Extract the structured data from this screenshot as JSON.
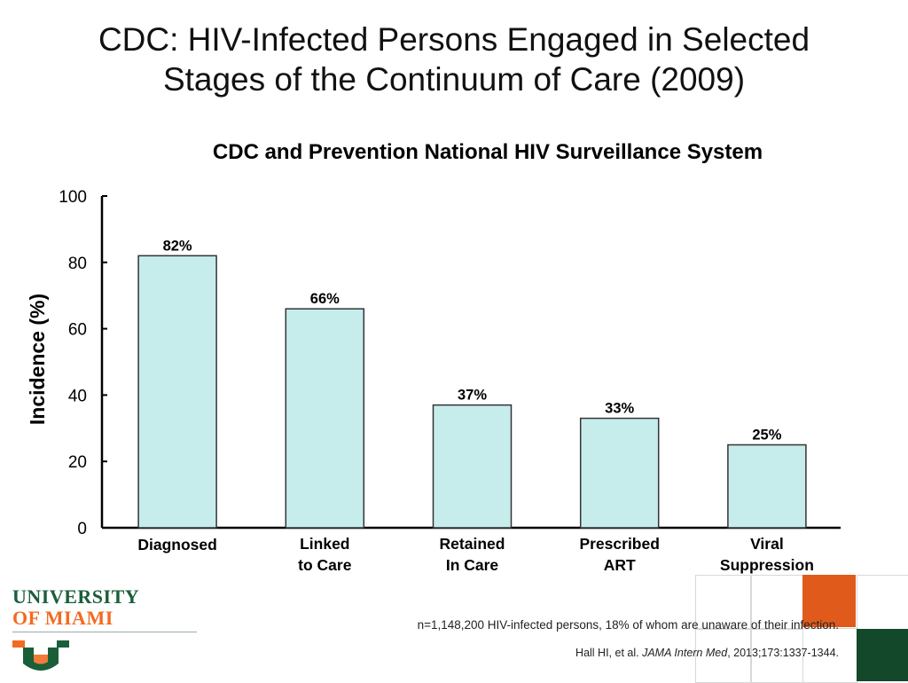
{
  "slide": {
    "title_line1": "CDC: HIV-Infected Persons Engaged in Selected",
    "title_line2": "Stages of the Continuum of Care (2009)"
  },
  "chart_data": {
    "type": "bar",
    "title": "CDC and Prevention National HIV Surveillance System",
    "ylabel": "Incidence (%)",
    "xlabel": "",
    "ylim": [
      0,
      100
    ],
    "yticks": [
      0,
      20,
      40,
      60,
      80,
      100
    ],
    "categories": [
      [
        "Diagnosed"
      ],
      [
        "Linked",
        "to Care"
      ],
      [
        "Retained",
        "In Care"
      ],
      [
        "Prescribed",
        "ART"
      ],
      [
        "Viral",
        "Suppression"
      ]
    ],
    "values": [
      82,
      66,
      37,
      33,
      25
    ],
    "data_labels": [
      "82%",
      "66%",
      "37%",
      "33%",
      "25%"
    ],
    "bar_color": "#c7ecec",
    "bar_edge": "#333333",
    "grid": false
  },
  "logo": {
    "line1": "UNIVERSITY",
    "line2": "OF MIAMI",
    "mark": "U",
    "green": "#1b5e3a",
    "orange": "#f26b21"
  },
  "footnote": "n=1,148,200 HIV-infected persons, 18% of whom are unaware of their infection.",
  "citation": {
    "authors": "Hall HI, et al. ",
    "journal": "JAMA Intern Med",
    "rest": ", 2013;173:1337-1344."
  },
  "decor_colors": {
    "orange": "#e05a1c",
    "green": "#13482b",
    "grid": "#d8d8d8"
  }
}
